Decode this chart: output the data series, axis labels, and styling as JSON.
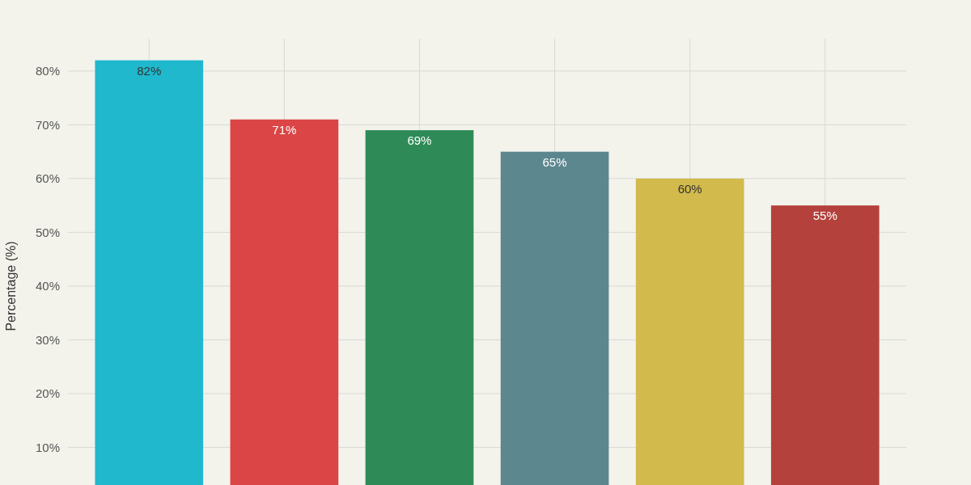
{
  "chart_data": {
    "type": "bar",
    "ylabel": "Percentage (%)",
    "categories": [
      null,
      null,
      null,
      null,
      null,
      null
    ],
    "values": [
      82,
      71,
      69,
      65,
      60,
      55
    ],
    "colors": [
      "#1fb8cd",
      "#db4545",
      "#2e8b57",
      "#5d878f",
      "#d2ba4c",
      "#b4413c"
    ],
    "value_labels": [
      "82%",
      "71%",
      "69%",
      "65%",
      "60%",
      "55%"
    ],
    "ylim": [
      3,
      86
    ],
    "yticks": [
      {
        "value": 10,
        "label": "10%"
      },
      {
        "value": 20,
        "label": "20%"
      },
      {
        "value": 30,
        "label": "30%"
      },
      {
        "value": 40,
        "label": "40%"
      },
      {
        "value": 50,
        "label": "50%"
      },
      {
        "value": 60,
        "label": "60%"
      },
      {
        "value": 70,
        "label": "70%"
      },
      {
        "value": 80,
        "label": "80%"
      }
    ],
    "grid": true
  }
}
